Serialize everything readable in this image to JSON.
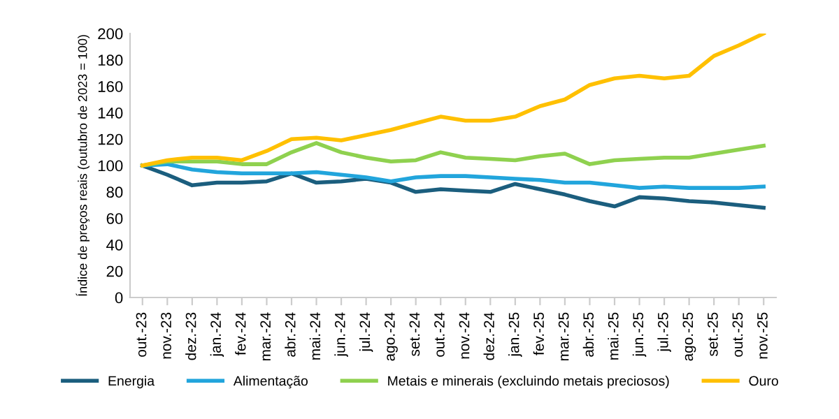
{
  "chart_data": {
    "type": "line",
    "ylabel": "Índice de preços reais (outubro de 2023 = 100)",
    "categories": [
      "out.-23",
      "nov.-23",
      "dez.-23",
      "jan.-24",
      "fev.-24",
      "mar.-24",
      "abr.-24",
      "mai.-24",
      "jun.-24",
      "jul.-24",
      "ago.-24",
      "set.-24",
      "out.-24",
      "nov.-24",
      "dez.-24",
      "jan.-25",
      "fev.-25",
      "mar.-25",
      "abr.-25",
      "mai.-25",
      "jun.-25",
      "jul.-25",
      "ago.-25",
      "set.-25",
      "out.-25",
      "nov.-25"
    ],
    "series": [
      {
        "name": "Energia",
        "color": "#1b5e7e",
        "values": [
          100,
          93,
          85,
          87,
          87,
          88,
          94,
          87,
          88,
          90,
          87,
          80,
          82,
          81,
          80,
          86,
          82,
          78,
          73,
          69,
          76,
          75,
          73,
          72,
          70,
          68
        ]
      },
      {
        "name": "Alimentação",
        "color": "#22a5dc",
        "values": [
          100,
          101,
          97,
          95,
          94,
          94,
          94,
          95,
          93,
          91,
          88,
          91,
          92,
          92,
          91,
          90,
          89,
          87,
          87,
          85,
          83,
          84,
          83,
          83,
          83,
          84
        ]
      },
      {
        "name": "Metais e minerais (excluindo metais preciosos)",
        "color": "#8fd14f",
        "values": [
          100,
          103,
          103,
          103,
          101,
          101,
          110,
          117,
          110,
          106,
          103,
          104,
          110,
          106,
          105,
          104,
          107,
          109,
          101,
          104,
          105,
          106,
          106,
          109,
          112,
          115
        ]
      },
      {
        "name": "Ouro",
        "color": "#ffc000",
        "values": [
          100,
          104,
          106,
          106,
          104,
          111,
          120,
          121,
          119,
          123,
          127,
          132,
          137,
          134,
          134,
          137,
          145,
          150,
          161,
          166,
          168,
          166,
          168,
          183,
          191,
          200
        ]
      }
    ],
    "ylim": [
      0,
      200
    ],
    "yticks": [
      0,
      20,
      40,
      60,
      80,
      100,
      120,
      140,
      160,
      180,
      200
    ],
    "grid": false,
    "legend": "bottom",
    "marker": "none",
    "line_style": "solid"
  }
}
